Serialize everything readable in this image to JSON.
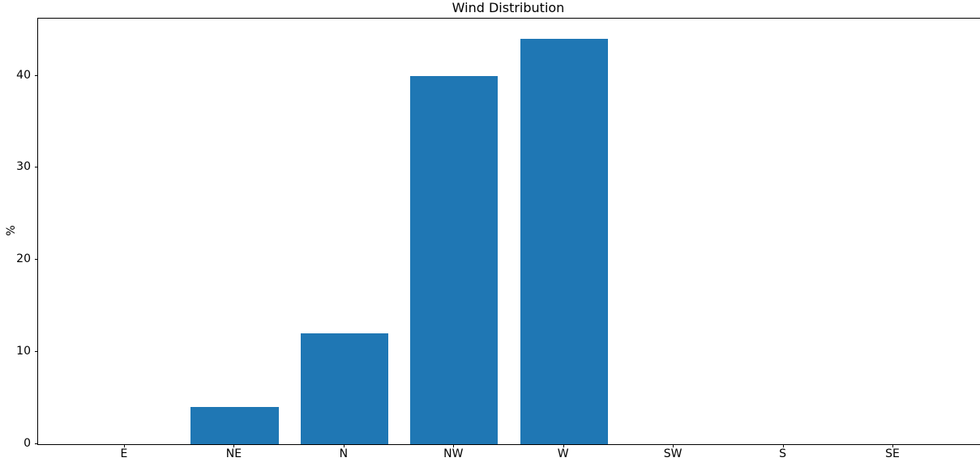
{
  "chart_data": {
    "type": "bar",
    "title": "Wind Distribution",
    "xlabel": "",
    "ylabel": "%",
    "categories": [
      "E",
      "NE",
      "N",
      "NW",
      "W",
      "SW",
      "S",
      "SE"
    ],
    "values": [
      0,
      4,
      12,
      40,
      44,
      0,
      0,
      0
    ],
    "yticks": [
      0,
      10,
      20,
      30,
      40
    ],
    "ylim": [
      0,
      46.2
    ],
    "xlim": [
      -0.79,
      7.79
    ],
    "bar_width_units": 0.8,
    "bar_color": "#1f77b4",
    "axis_color": "#000000",
    "text_color": "#000000",
    "background_color": "#ffffff",
    "grid": false,
    "legend": null
  }
}
